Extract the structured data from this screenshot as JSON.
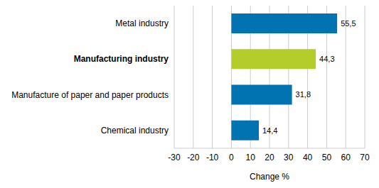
{
  "chart_data": {
    "type": "bar",
    "orientation": "horizontal",
    "categories": [
      "Metal industry",
      "Manufacturing industry",
      "Manufacture of paper and paper products",
      "Chemical industry"
    ],
    "values": [
      55.5,
      44.3,
      31.8,
      14.4
    ],
    "value_labels": [
      "55,5",
      "44,3",
      "31,8",
      "14,4"
    ],
    "data_labels": true,
    "colors": [
      "#0073b0",
      "#b4cd2a",
      "#0073b0",
      "#0073b0"
    ],
    "x_label": "Change %",
    "xlim": [
      -30,
      70
    ],
    "xticks": [
      -30,
      -20,
      -10,
      0,
      10,
      20,
      30,
      40,
      50,
      60,
      70
    ],
    "grid": true
  }
}
